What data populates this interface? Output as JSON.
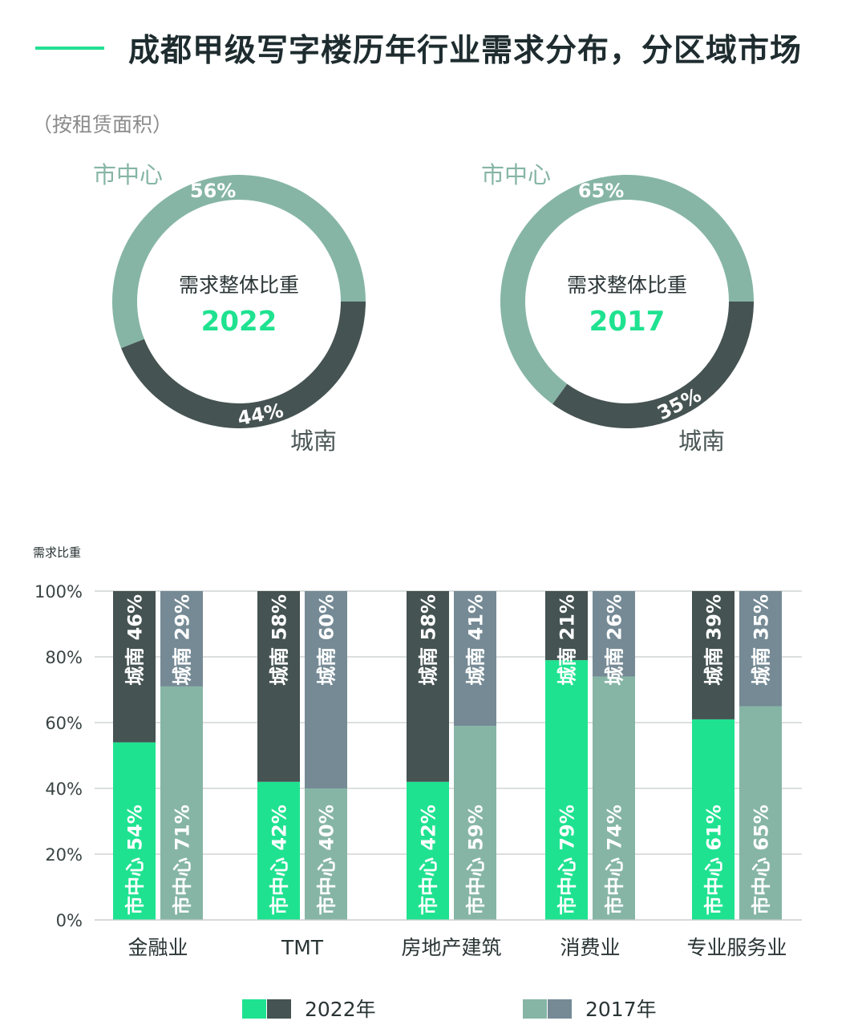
{
  "header": {
    "title": "成都甲级写字楼历年行业需求分布，分区域市场",
    "subtitle": "（按租赁面积）"
  },
  "colors": {
    "cbd_2022": "#1fe290",
    "south_2022": "#455352",
    "cbd_2017": "#86b5a6",
    "south_2017": "#758a95",
    "accent": "#23df95",
    "text": "#2a3435"
  },
  "chart_data": [
    {
      "type": "pie",
      "variant": "donut",
      "center_label": "需求整体比重",
      "center_year": "2022",
      "slices": [
        {
          "name": "市中心",
          "value": 56,
          "label": "56%"
        },
        {
          "name": "城南",
          "value": 44,
          "label": "44%"
        }
      ]
    },
    {
      "type": "pie",
      "variant": "donut",
      "center_label": "需求整体比重",
      "center_year": "2017",
      "slices": [
        {
          "name": "市中心",
          "value": 65,
          "label": "65%"
        },
        {
          "name": "城南",
          "value": 35,
          "label": "35%"
        }
      ]
    },
    {
      "type": "bar",
      "stacked": true,
      "ylabel": "需求比重",
      "ylim": [
        0,
        100
      ],
      "yticks": [
        "0%",
        "20%",
        "40%",
        "60%",
        "80%",
        "100%"
      ],
      "categories": [
        "金融业",
        "TMT",
        "房地产建筑",
        "消费业",
        "专业服务业"
      ],
      "series": [
        {
          "name": "2022年",
          "group": "2022年",
          "segment": "市中心",
          "values": [
            54,
            42,
            42,
            79,
            61
          ]
        },
        {
          "name": "2022年",
          "group": "2022年",
          "segment": "城南",
          "values": [
            46,
            58,
            58,
            21,
            39
          ]
        },
        {
          "name": "2017年",
          "group": "2017年",
          "segment": "市中心",
          "values": [
            71,
            40,
            59,
            74,
            65
          ]
        },
        {
          "name": "2017年",
          "group": "2017年",
          "segment": "城南",
          "values": [
            29,
            60,
            41,
            26,
            35
          ]
        }
      ],
      "legend": [
        "2022年",
        "2017年"
      ],
      "legend_position": "bottom",
      "grid": true
    }
  ]
}
